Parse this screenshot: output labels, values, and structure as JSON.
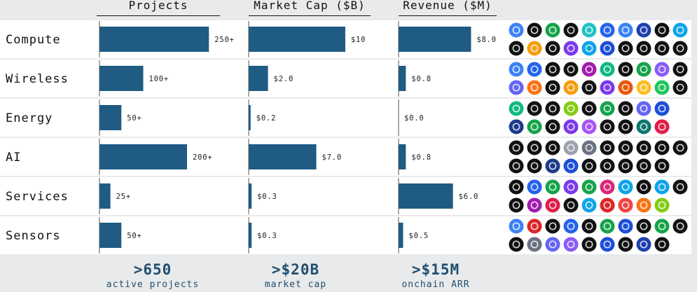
{
  "chart_data": [
    {
      "type": "bar",
      "orientation": "horizontal",
      "title": "Projects",
      "categories": [
        "Compute",
        "Wireless",
        "Energy",
        "AI",
        "Services",
        "Sensors"
      ],
      "values": [
        250,
        100,
        50,
        200,
        25,
        50
      ],
      "value_labels": [
        "250+",
        "100+",
        "50+",
        "200+",
        "25+",
        "50+"
      ],
      "xlim": [
        0,
        320
      ]
    },
    {
      "type": "bar",
      "orientation": "horizontal",
      "title": "Market Cap ($B)",
      "categories": [
        "Compute",
        "Wireless",
        "Energy",
        "AI",
        "Services",
        "Sensors"
      ],
      "values": [
        10,
        2.0,
        0.2,
        7.0,
        0.3,
        0.3
      ],
      "value_labels": [
        "$10",
        "$2.0",
        "$0.2",
        "$7.0",
        "$0.3",
        "$0.3"
      ],
      "xlim": [
        0,
        14.5
      ]
    },
    {
      "type": "bar",
      "orientation": "horizontal",
      "title": "Revenue ($M)",
      "categories": [
        "Compute",
        "Wireless",
        "Energy",
        "AI",
        "Services",
        "Sensors"
      ],
      "values": [
        8.0,
        0.8,
        0.0,
        0.8,
        6.0,
        0.5
      ],
      "value_labels": [
        "$8.0",
        "$0.8",
        "$0.0",
        "$0.8",
        "$6.0",
        "$0.5"
      ],
      "xlim": [
        0,
        11.6
      ]
    }
  ],
  "colors": {
    "bar": "#1f5b82",
    "row_background": "#ffffff",
    "page_background": "#e9eaeb",
    "summary_text": "#1f4f70"
  },
  "logo_colors": {
    "Compute": [
      "#3b82f6",
      "#111111",
      "#16a34a",
      "#111111",
      "#22c1c3",
      "#2563eb",
      "#3b82f6",
      "#1e40af",
      "#111111",
      "#0ea5e9",
      "#111111",
      "#f59e0b",
      "#111111",
      "#7c3aed",
      "#0ea5e9",
      "#1d4ed8",
      "#111111",
      "#111111",
      "#111111",
      "#111111"
    ],
    "Wireless": [
      "#3b82f6",
      "#2563eb",
      "#111111",
      "#111111",
      "#a21caf",
      "#10b981",
      "#111111",
      "#16a34a",
      "#8b5cf6",
      "#111111",
      "#6366f1",
      "#f97316",
      "#111111",
      "#f59e0b",
      "#111111",
      "#7c3aed",
      "#ea580c",
      "#fbbf24",
      "#22c55e",
      "#111111"
    ],
    "Energy": [
      "#10b981",
      "#111111",
      "#111111",
      "#84cc16",
      "#111111",
      "#16a34a",
      "#111111",
      "#6366f1",
      "#1d4ed8",
      "#1e3a8a",
      "#16a34a",
      "#111111",
      "#7c3aed",
      "#a855f7",
      "#111111",
      "#111111",
      "#0f766e",
      "#e11d48"
    ],
    "AI": [
      "#111111",
      "#111111",
      "#111111",
      "#9ca3af",
      "#6b7280",
      "#111111",
      "#111111",
      "#111111",
      "#111111",
      "#111111",
      "#111111",
      "#111111",
      "#1e3a8a",
      "#1d4ed8",
      "#111111",
      "#111111",
      "#111111",
      "#111111",
      "#111111"
    ],
    "Services": [
      "#111111",
      "#2563eb",
      "#16a34a",
      "#7c3aed",
      "#16a34a",
      "#db2777",
      "#0ea5e9",
      "#111111",
      "#0ea5e9",
      "#111111",
      "#111111",
      "#a21caf",
      "#e11d48",
      "#111111",
      "#0ea5e9",
      "#dc2626",
      "#ef4444",
      "#f97316",
      "#84cc16"
    ],
    "Sensors": [
      "#3b82f6",
      "#dc2626",
      "#111111",
      "#2563eb",
      "#111111",
      "#16a34a",
      "#1d4ed8",
      "#111111",
      "#16a34a",
      "#111111",
      "#111111",
      "#6b7280",
      "#6366f1",
      "#8b5cf6",
      "#111111",
      "#1d4ed8",
      "#111111",
      "#1e40af",
      "#111111"
    ]
  },
  "summary": [
    {
      "value": ">650",
      "label": "active projects"
    },
    {
      "value": ">$20B",
      "label": "market cap"
    },
    {
      "value": ">$15M",
      "label": "onchain ARR"
    }
  ]
}
